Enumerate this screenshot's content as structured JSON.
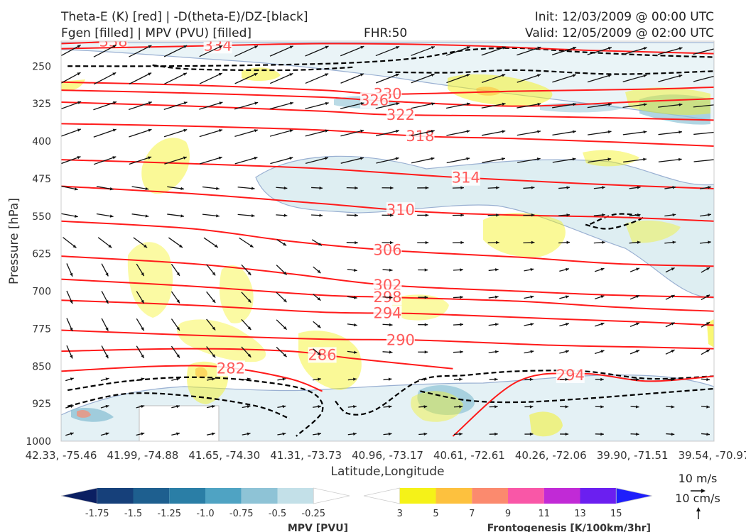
{
  "header": {
    "title_left_1": "Theta-E (K) [red] | -D(theta-E)/DZ-[black]",
    "title_left_2": "Fgen [filled] | MPV (PVU) [filled]",
    "fhr": "FHR:50",
    "init": "Init: 12/03/2009 @ 00:00 UTC",
    "valid": "Valid: 12/05/2009 @ 02:00 UTC"
  },
  "chart_data": {
    "type": "cross-section",
    "xlabel": "Latitude,Longitude",
    "ylabel": "Pressure [hPa]",
    "y_ticks": [
      250,
      325,
      400,
      475,
      550,
      625,
      700,
      775,
      850,
      925,
      1000
    ],
    "ylim": [
      1000,
      200
    ],
    "x_ticks": [
      "42.33, -75.46",
      "41.99, -74.88",
      "41.65, -74.30",
      "41.31, -73.73",
      "40.96, -73.17",
      "40.61, -72.61",
      "40.26, -72.06",
      "39.90, -71.51",
      "39.54, -70.97"
    ],
    "theta_e_contours": [
      {
        "value": 338,
        "points": [
          [
            0,
            205
          ],
          [
            0.1,
            200
          ]
        ]
      },
      {
        "value": 334,
        "points": [
          [
            0,
            215
          ],
          [
            0.2,
            210
          ],
          [
            0.4,
            205
          ],
          [
            0.6,
            208
          ],
          [
            0.8,
            218
          ],
          [
            1,
            225
          ]
        ]
      },
      {
        "value": 330,
        "points": [
          [
            0,
            282
          ],
          [
            0.2,
            288
          ],
          [
            0.4,
            298
          ],
          [
            0.5,
            306
          ],
          [
            0.7,
            300
          ],
          [
            0.9,
            296
          ],
          [
            1,
            292
          ]
        ]
      },
      {
        "value": 326,
        "points": [
          [
            0,
            298
          ],
          [
            0.2,
            304
          ],
          [
            0.4,
            312
          ],
          [
            0.5,
            320
          ],
          [
            0.7,
            330
          ],
          [
            0.9,
            320
          ],
          [
            1,
            315
          ]
        ]
      },
      {
        "value": 322,
        "points": [
          [
            0,
            322
          ],
          [
            0.2,
            330
          ],
          [
            0.4,
            340
          ],
          [
            0.5,
            347
          ],
          [
            0.7,
            350
          ],
          [
            0.9,
            355
          ],
          [
            1,
            358
          ]
        ]
      },
      {
        "value": 318,
        "points": [
          [
            0,
            365
          ],
          [
            0.2,
            370
          ],
          [
            0.4,
            378
          ],
          [
            0.55,
            390
          ],
          [
            0.7,
            395
          ],
          [
            0.85,
            402
          ],
          [
            1,
            410
          ]
        ]
      },
      {
        "value": 314,
        "points": [
          [
            0,
            437
          ],
          [
            0.2,
            445
          ],
          [
            0.4,
            455
          ],
          [
            0.6,
            472
          ],
          [
            0.8,
            485
          ],
          [
            1,
            495
          ]
        ]
      },
      {
        "value": 310,
        "points": [
          [
            0,
            490
          ],
          [
            0.2,
            505
          ],
          [
            0.4,
            525
          ],
          [
            0.55,
            541
          ],
          [
            0.7,
            548
          ],
          [
            0.85,
            552
          ],
          [
            1,
            560
          ]
        ]
      },
      {
        "value": 306,
        "points": [
          [
            0,
            560
          ],
          [
            0.2,
            575
          ],
          [
            0.35,
            600
          ],
          [
            0.5,
            618
          ],
          [
            0.7,
            632
          ],
          [
            0.85,
            645
          ],
          [
            1,
            650
          ]
        ]
      },
      {
        "value": 302,
        "points": [
          [
            0,
            630
          ],
          [
            0.2,
            645
          ],
          [
            0.35,
            665
          ],
          [
            0.5,
            688
          ],
          [
            0.7,
            700
          ],
          [
            0.85,
            708
          ],
          [
            1,
            712
          ]
        ]
      },
      {
        "value": 298,
        "points": [
          [
            0,
            676
          ],
          [
            0.2,
            690
          ],
          [
            0.4,
            708
          ],
          [
            0.5,
            712
          ],
          [
            0.7,
            720
          ],
          [
            0.85,
            732
          ],
          [
            1,
            740
          ]
        ]
      },
      {
        "value": 294,
        "points": [
          [
            0,
            718
          ],
          [
            0.2,
            728
          ],
          [
            0.4,
            742
          ],
          [
            0.55,
            745
          ],
          [
            0.75,
            755
          ],
          [
            0.9,
            762
          ],
          [
            1,
            768
          ]
        ]
      },
      {
        "value": 290,
        "points": [
          [
            0,
            778
          ],
          [
            0.2,
            788
          ],
          [
            0.4,
            796
          ],
          [
            0.55,
            798
          ],
          [
            0.75,
            808
          ],
          [
            0.9,
            812
          ],
          [
            1,
            815
          ]
        ]
      },
      {
        "value": 286,
        "points": [
          [
            0,
            820
          ],
          [
            0.2,
            815
          ],
          [
            0.35,
            820
          ],
          [
            0.45,
            835
          ],
          [
            0.6,
            855
          ]
        ]
      },
      {
        "value": 282,
        "points": [
          [
            0,
            860
          ],
          [
            0.15,
            850
          ],
          [
            0.25,
            852
          ],
          [
            0.35,
            875
          ],
          [
            0.4,
            900
          ]
        ]
      },
      {
        "value": 294,
        "points": [
          [
            0.6,
            990
          ],
          [
            0.7,
            880
          ],
          [
            0.8,
            865
          ],
          [
            0.9,
            880
          ],
          [
            1,
            870
          ]
        ]
      }
    ],
    "mpv_legend": {
      "label": "MPV [PVU]",
      "ticks": [
        "-1.75",
        "-1.5",
        "-1.25",
        "-1.0",
        "-0.75",
        "-0.5",
        "-0.25"
      ],
      "colors": [
        "#0b1f62",
        "#16407a",
        "#1e5f8f",
        "#2a7ea6",
        "#4fa3c3",
        "#8ec3d6",
        "#c3e0e8",
        "#ffffff"
      ]
    },
    "fgen_legend": {
      "label": "Frontogenesis [K/100km/3hr]",
      "ticks": [
        "3",
        "5",
        "7",
        "9",
        "11",
        "13",
        "15"
      ],
      "colors": [
        "#ffffff",
        "#f5f218",
        "#fdc13e",
        "#fb8a6e",
        "#f957a7",
        "#c12ad6",
        "#6b1ff0",
        "#1f1ffb"
      ]
    },
    "wind_vector_labels": {
      "horizontal": "10 m/s",
      "vertical": "10 cm/s"
    },
    "colors": {
      "theta_e": "#ff1a1a",
      "theta_e_label": "#ff5a5a",
      "ddz": "#000000",
      "mpv_outline": "#9ab0d2"
    }
  }
}
